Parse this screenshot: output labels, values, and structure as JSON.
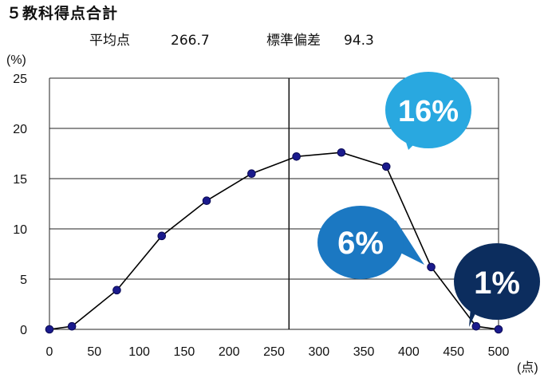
{
  "title": "５教科得点合計",
  "stats": {
    "mean_label": "平均点",
    "mean_value": "266.7",
    "sd_label": "標準偏差",
    "sd_value": "94.3"
  },
  "chart_data": {
    "type": "line",
    "ylabel": "(%)",
    "xlabel": "(点)",
    "xlim": [
      0,
      500
    ],
    "ylim": [
      0,
      25
    ],
    "x_ticks": [
      0,
      50,
      100,
      150,
      200,
      250,
      300,
      350,
      400,
      450,
      500
    ],
    "y_ticks": [
      0,
      5,
      10,
      15,
      20,
      25
    ],
    "grid": "horizontal",
    "series": [
      {
        "x": [
          0,
          25,
          75,
          125,
          175,
          225,
          275,
          325,
          375,
          425,
          475,
          500
        ],
        "y": [
          0,
          0.3,
          3.9,
          9.3,
          12.8,
          15.5,
          17.2,
          17.6,
          16.2,
          6.2,
          0.3,
          0
        ],
        "color": "#1a1a8c"
      }
    ],
    "mean_line_x": 266.7,
    "callouts": [
      {
        "text": "16%",
        "color": "#29a8e0"
      },
      {
        "text": "6%",
        "color": "#1b78c2"
      },
      {
        "text": "1%",
        "color": "#0c2d5e"
      }
    ]
  }
}
